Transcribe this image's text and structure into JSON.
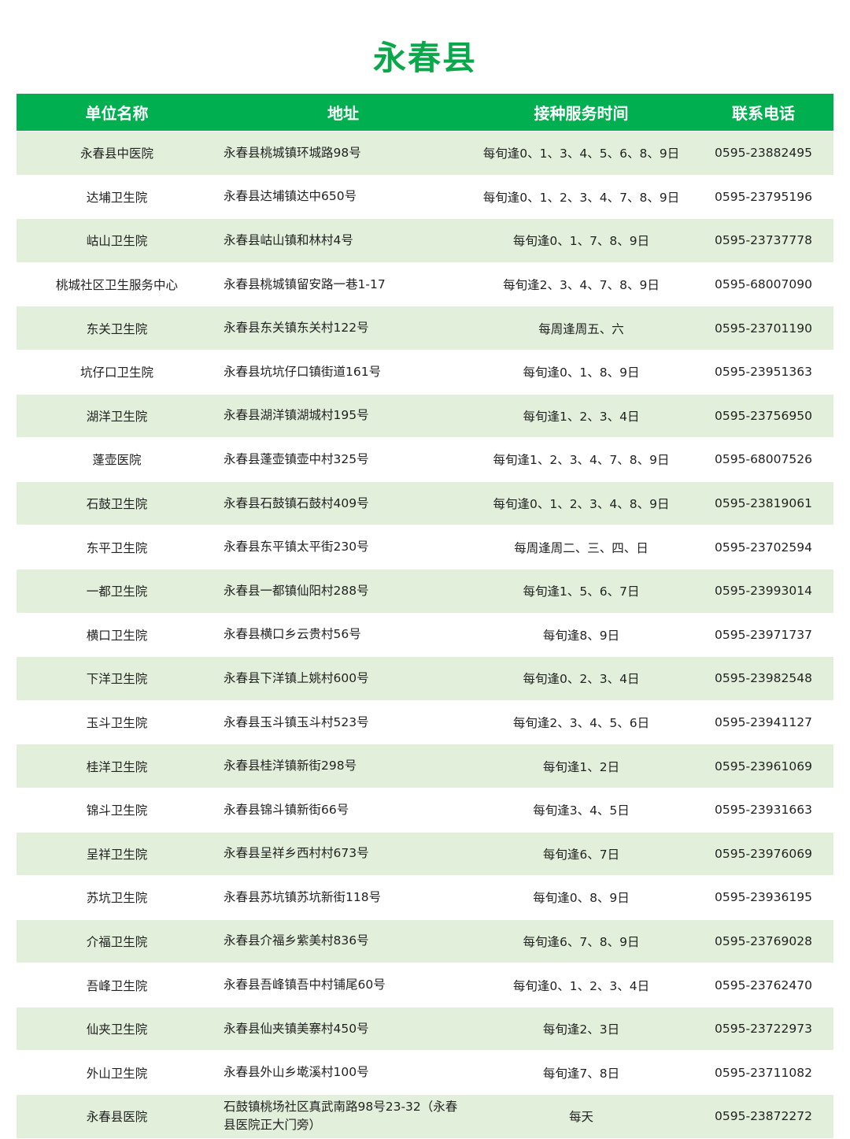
{
  "title": "永春县",
  "colors": {
    "header_bg": "#00b050",
    "stripe_bg": "#e2efda",
    "title": "#0aa84a"
  },
  "table": {
    "headers": [
      "单位名称",
      "地址",
      "接种服务时间",
      "联系电话"
    ],
    "rows": [
      [
        "永春县中医院",
        "永春县桃城镇环城路98号",
        "每旬逢0、1、3、4、5、6、8、9日",
        "0595-23882495"
      ],
      [
        "达埔卫生院",
        "永春县达埔镇达中650号",
        "每旬逢0、1、2、3、4、7、8、9日",
        "0595-23795196"
      ],
      [
        "岵山卫生院",
        "永春县岵山镇和林村4号",
        "每旬逢0、1、7、8、9日",
        "0595-23737778"
      ],
      [
        "桃城社区卫生服务中心",
        "永春县桃城镇留安路一巷1-17",
        "每旬逢2、3、4、7、8、9日",
        "0595-68007090"
      ],
      [
        "东关卫生院",
        "永春县东关镇东关村122号",
        "每周逢周五、六",
        "0595-23701190"
      ],
      [
        "坑仔口卫生院",
        "永春县坑坑仔口镇街道161号",
        "每旬逢0、1、8、9日",
        "0595-23951363"
      ],
      [
        "湖洋卫生院",
        "永春县湖洋镇湖城村195号",
        "每旬逢1、2、3、4日",
        "0595-23756950"
      ],
      [
        "蓬壶医院",
        "永春县蓬壶镇壶中村325号",
        "每旬逢1、2、3、4、7、8、9日",
        "0595-68007526"
      ],
      [
        "石鼓卫生院",
        "永春县石鼓镇石鼓村409号",
        "每旬逢0、1、2、3、4、8、9日",
        "0595-23819061"
      ],
      [
        "东平卫生院",
        "永春县东平镇太平街230号",
        "每周逢周二、三、四、日",
        "0595-23702594"
      ],
      [
        "一都卫生院",
        "永春县一都镇仙阳村288号",
        "每旬逢1、5、6、7日",
        "0595-23993014"
      ],
      [
        "横口卫生院",
        "永春县横口乡云贵村56号",
        "每旬逢8、9日",
        "0595-23971737"
      ],
      [
        "下洋卫生院",
        "永春县下洋镇上姚村600号",
        "每旬逢0、2、3、4日",
        "0595-23982548"
      ],
      [
        "玉斗卫生院",
        "永春县玉斗镇玉斗村523号",
        "每旬逢2、3、4、5、6日",
        "0595-23941127"
      ],
      [
        "桂洋卫生院",
        "永春县桂洋镇新街298号",
        "每旬逢1、2日",
        "0595-23961069"
      ],
      [
        "锦斗卫生院",
        "永春县锦斗镇新街66号",
        "每旬逢3、4、5日",
        "0595-23931663"
      ],
      [
        "呈祥卫生院",
        "永春县呈祥乡西村村673号",
        "每旬逢6、7日",
        "0595-23976069"
      ],
      [
        "苏坑卫生院",
        "永春县苏坑镇苏坑新街118号",
        "每旬逢0、8、9日",
        "0595-23936195"
      ],
      [
        "介福卫生院",
        "永春县介福乡紫美村836号",
        "每旬逢6、7、8、9日",
        "0595-23769028"
      ],
      [
        "吾峰卫生院",
        "永春县吾峰镇吾中村铺尾60号",
        "每旬逢0、1、2、3、4日",
        "0595-23762470"
      ],
      [
        "仙夹卫生院",
        "永春县仙夹镇美寨村450号",
        "每旬逢2、3日",
        "0595-23722973"
      ],
      [
        "外山卫生院",
        "永春县外山乡墘溪村100号",
        "每旬逢7、8日",
        "0595-23711082"
      ],
      [
        "永春县医院",
        "石鼓镇桃场社区真武南路98号23-32（永春县医院正大门旁）",
        "每天",
        "0595-23872272"
      ]
    ]
  }
}
